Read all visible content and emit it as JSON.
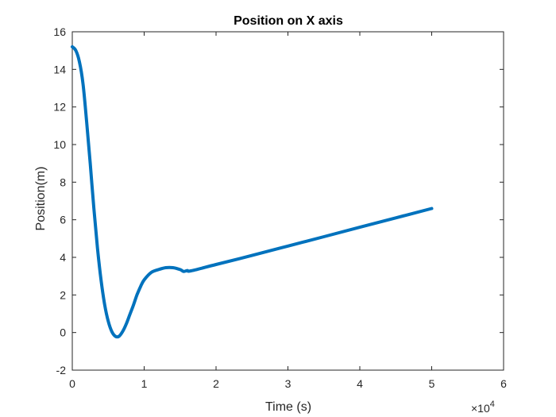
{
  "chart_data": {
    "type": "line",
    "title": "Position on X axis",
    "xlabel": "Time (s)",
    "ylabel": "Position(m)",
    "x_multiplier_base": "×10",
    "x_multiplier_exp": "4",
    "xlim": [
      0,
      6
    ],
    "ylim": [
      -2,
      16
    ],
    "x_ticks": [
      0,
      1,
      2,
      3,
      4,
      5,
      6
    ],
    "x_tick_labels": [
      "0",
      "1",
      "2",
      "3",
      "4",
      "5",
      "6"
    ],
    "y_ticks": [
      -2,
      0,
      2,
      4,
      6,
      8,
      10,
      12,
      14,
      16
    ],
    "y_tick_labels": [
      "-2",
      "0",
      "2",
      "4",
      "6",
      "8",
      "10",
      "12",
      "14",
      "16"
    ],
    "grid": false,
    "line_color": "#0072BD",
    "axis_color": "#262626",
    "series": [
      {
        "x": [
          0,
          0.05,
          0.1,
          0.15,
          0.2,
          0.25,
          0.3,
          0.35,
          0.4,
          0.45,
          0.5,
          0.55,
          0.6,
          0.65,
          0.7,
          0.75,
          0.8,
          0.85,
          0.9,
          0.95,
          1.0,
          1.1,
          1.2,
          1.3,
          1.4,
          1.5,
          1.55,
          1.6,
          1.65,
          2.0,
          2.5,
          3.0,
          3.5,
          4.0,
          4.5,
          5.0
        ],
        "y": [
          15.2,
          15.0,
          14.4,
          13.2,
          11.2,
          9.0,
          6.6,
          4.5,
          2.8,
          1.5,
          0.6,
          0.05,
          -0.2,
          -0.2,
          0.05,
          0.45,
          0.95,
          1.45,
          2.0,
          2.45,
          2.8,
          3.2,
          3.35,
          3.45,
          3.45,
          3.35,
          3.25,
          3.3,
          3.28,
          3.62,
          4.1,
          4.6,
          5.1,
          5.6,
          6.1,
          6.6
        ]
      }
    ]
  }
}
